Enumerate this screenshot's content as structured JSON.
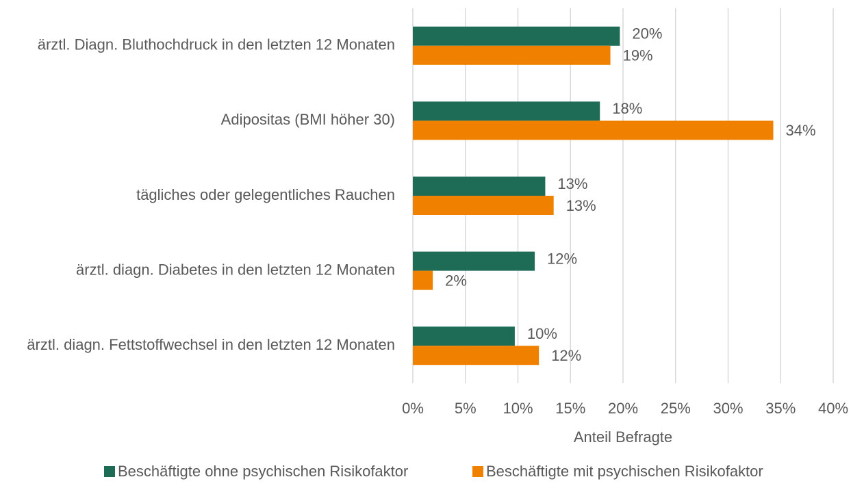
{
  "chart_data": {
    "type": "bar",
    "categories": [
      "ärztl. Diagn. Bluthochdruck in den letzten 12 Monaten",
      "Adipositas (BMI höher 30)",
      "tägliches oder gelegentliches Rauchen",
      "ärztl. diagn. Diabetes in den letzten 12 Monaten",
      "ärztl. diagn. Fettstoffwechsel in den letzten 12 Monaten"
    ],
    "series": [
      {
        "name": "Beschäftigte ohne psychischen Risikofaktor",
        "color": "#1e6b56",
        "values": [
          19.7,
          17.8,
          12.6,
          11.6,
          9.7
        ],
        "value_labels": [
          "20%",
          "18%",
          "13%",
          "12%",
          "10%"
        ]
      },
      {
        "name": "Beschäftigte mit psychischen Risikofaktor",
        "color": "#f08100",
        "values": [
          18.8,
          34.3,
          13.4,
          1.9,
          12.0
        ],
        "value_labels": [
          "19%",
          "34%",
          "13%",
          "2%",
          "12%"
        ]
      }
    ],
    "xlabel": "Anteil Befragte",
    "xlim": [
      0,
      40
    ],
    "xticks": [
      {
        "value": 0,
        "label": "0%"
      },
      {
        "value": 5,
        "label": "5%"
      },
      {
        "value": 10,
        "label": "10%"
      },
      {
        "value": 15,
        "label": "15%"
      },
      {
        "value": 20,
        "label": "20%"
      },
      {
        "value": 25,
        "label": "25%"
      },
      {
        "value": 30,
        "label": "30%"
      },
      {
        "value": 35,
        "label": "35%"
      },
      {
        "value": 40,
        "label": "40%"
      }
    ],
    "grid": true,
    "legend": "bottom"
  }
}
